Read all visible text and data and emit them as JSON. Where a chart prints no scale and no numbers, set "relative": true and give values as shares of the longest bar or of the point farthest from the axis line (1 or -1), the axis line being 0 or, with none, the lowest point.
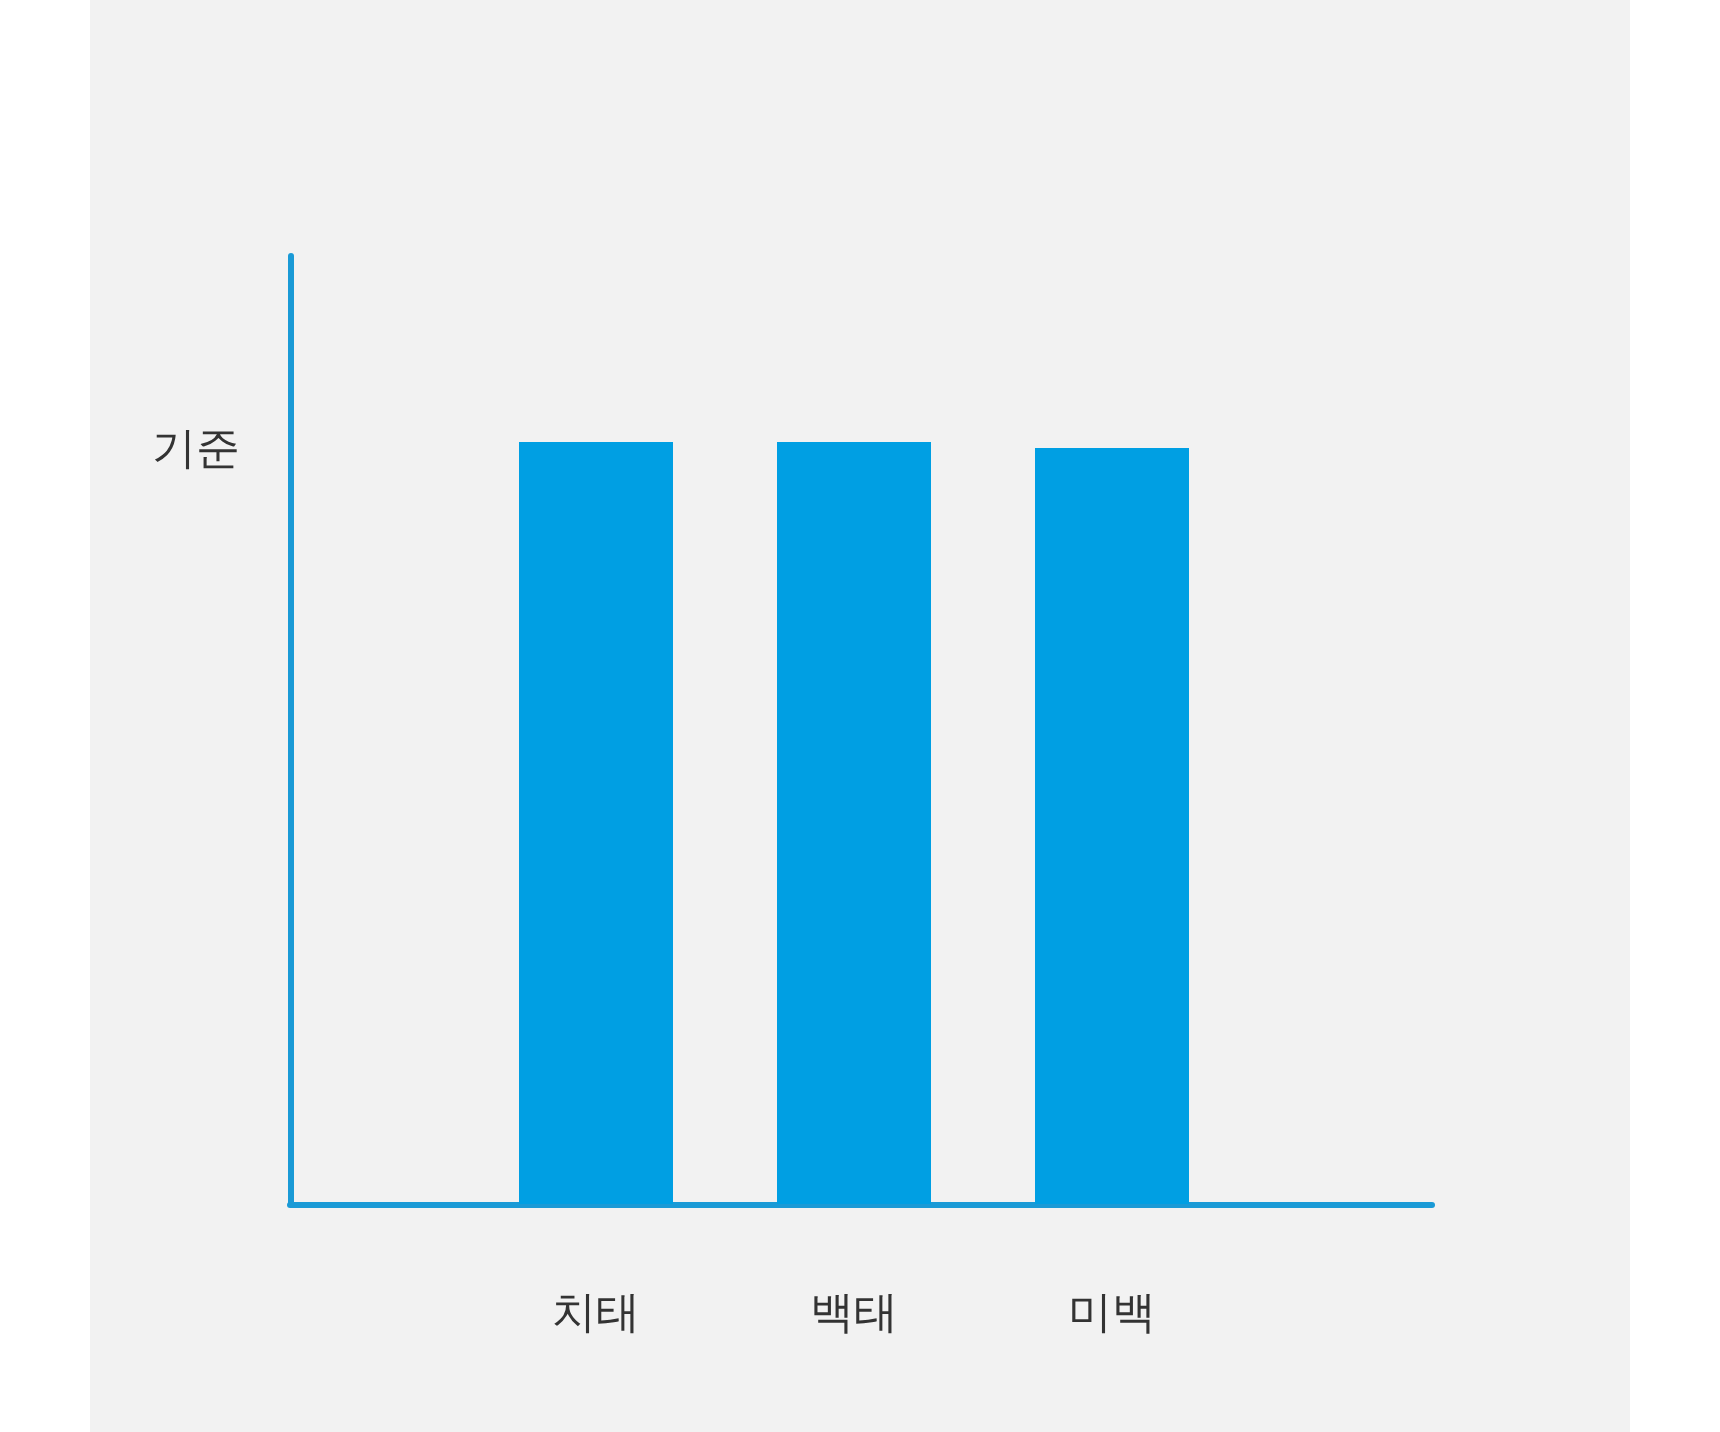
{
  "chart_data": {
    "type": "bar",
    "relative": true,
    "categories": [
      "치태",
      "백태",
      "미백"
    ],
    "values": [
      1,
      1,
      0.992
    ],
    "color": "#009fe3",
    "annotations": [
      "기준"
    ]
  }
}
